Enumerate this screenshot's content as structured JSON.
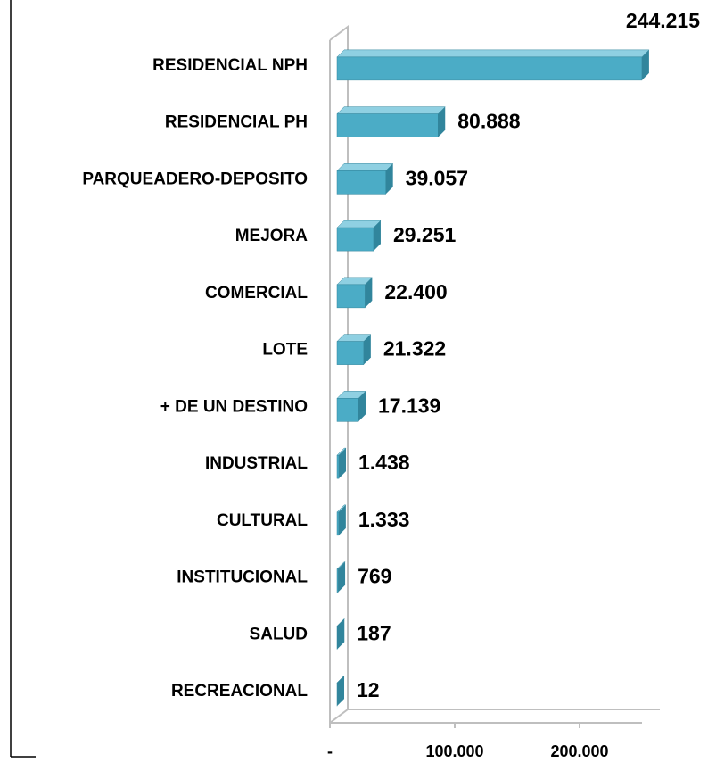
{
  "chart_data": {
    "type": "bar",
    "orientation": "horizontal",
    "categories": [
      "RESIDENCIAL NPH",
      "RESIDENCIAL PH",
      "PARQUEADERO-DEPOSITO",
      "MEJORA",
      "COMERCIAL",
      "LOTE",
      "+ DE UN DESTINO",
      "INDUSTRIAL",
      "CULTURAL",
      "INSTITUCIONAL",
      "SALUD",
      "RECREACIONAL"
    ],
    "values": [
      244215,
      80888,
      39057,
      29251,
      22400,
      21322,
      17139,
      1438,
      1333,
      769,
      187,
      12
    ],
    "value_labels": [
      "244.215",
      "80.888",
      "39.057",
      "29.251",
      "22.400",
      "21.322",
      "17.139",
      "1.438",
      "1.333",
      "769",
      "187",
      "12"
    ],
    "color": "#4bacc6",
    "xlim": [
      0,
      250000
    ],
    "xticks": [
      {
        "value": 0,
        "label": "-"
      },
      {
        "value": 100000,
        "label": "100.000"
      },
      {
        "value": 200000,
        "label": "200.000"
      }
    ]
  }
}
